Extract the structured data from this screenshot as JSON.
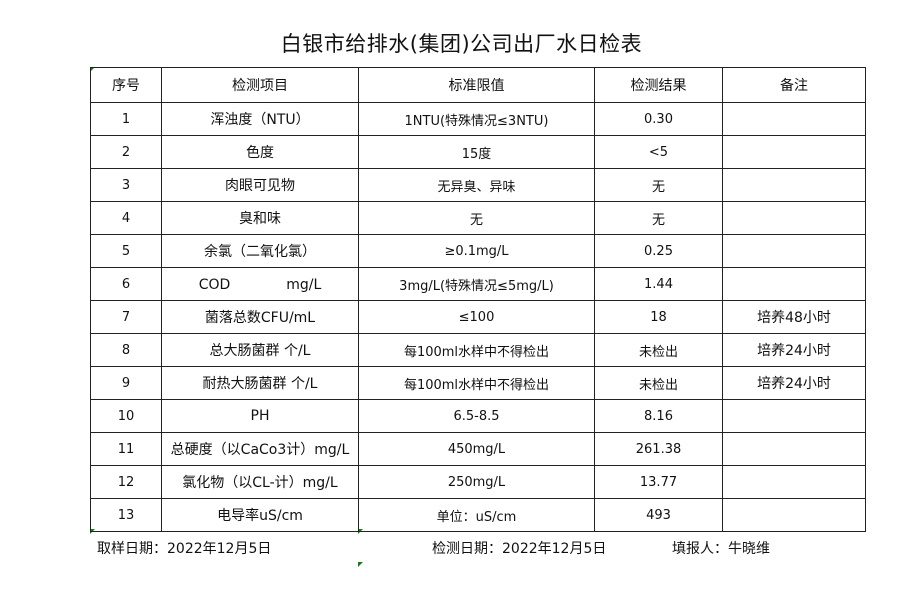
{
  "title": "白银市给排水(集团)公司出厂水日检表",
  "headers": [
    "序号",
    "检测项目",
    "标准限值",
    "检测结果",
    "备注"
  ],
  "rows": [
    [
      "1",
      "浑浊度（NTU）",
      "1NTU(特殊情况≤3NTU)",
      "0.30",
      ""
    ],
    [
      "2",
      "色度",
      "15度",
      "<5",
      ""
    ],
    [
      "3",
      "肉眼可见物",
      "无异臭、异味",
      "无",
      ""
    ],
    [
      "4",
      "臭和味",
      "无",
      "无",
      ""
    ],
    [
      "5",
      "余氯（二氧化氯）",
      "≥0.1mg/L",
      "0.25",
      ""
    ],
    [
      "6",
      "COD　　　　mg/L",
      "3mg/L(特殊情况≤5mg/L)",
      "1.44",
      ""
    ],
    [
      "7",
      "菌落总数CFU/mL",
      "≤100",
      "18",
      "培养48小时"
    ],
    [
      "8",
      "总大肠菌群 个/L",
      "每100ml水样中不得检出",
      "未检出",
      "培养24小时"
    ],
    [
      "9",
      "耐热大肠菌群 个/L",
      "每100ml水样中不得检出",
      "未检出",
      "培养24小时"
    ],
    [
      "10",
      "PH",
      "6.5-8.5",
      "8.16",
      ""
    ],
    [
      "11",
      "总硬度（以CaCo3计）mg/L",
      "450mg/L",
      "261.38",
      ""
    ],
    [
      "12",
      "氯化物（以CL-计）mg/L",
      "250mg/L",
      "13.77",
      ""
    ],
    [
      "13",
      "电导率uS/cm",
      "单位：uS/cm",
      "493",
      ""
    ]
  ],
  "footer": {
    "sampling_date": "取样日期：2022年12月5日",
    "test_date": "检测日期：2022年12月5日",
    "reporter": "填报人：牛晓维"
  }
}
